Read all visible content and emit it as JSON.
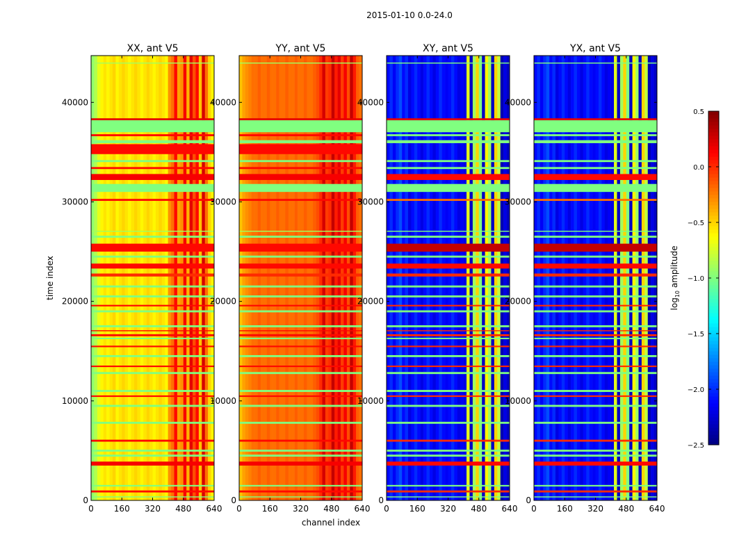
{
  "chart_data": {
    "type": "heatmap",
    "title": "2015-01-10 0.0-24.0",
    "xlabel": "channel index",
    "ylabel": "time index",
    "xlim": [
      0,
      640
    ],
    "ylim": [
      0,
      44700
    ],
    "xticks": [
      "0",
      "160",
      "320",
      "480",
      "640"
    ],
    "yticks": [
      "0",
      "10000",
      "20000",
      "30000",
      "40000"
    ],
    "xtick_values": [
      0,
      160,
      320,
      480,
      640
    ],
    "ytick_values": [
      0,
      10000,
      20000,
      30000,
      40000
    ],
    "colormap": "jet",
    "colorbar": {
      "label": "log10 amplitude",
      "label_main": "log",
      "label_sub": "10",
      "label_rest": " amplitude",
      "range": [
        -2.5,
        0.5
      ],
      "ticks": [
        "0.5",
        "0.0",
        "−0.5",
        "−1.0",
        "−1.5",
        "−2.0",
        "−2.5"
      ],
      "tick_values": [
        0.5,
        0.0,
        -0.5,
        -1.0,
        -1.5,
        -2.0,
        -2.5
      ]
    },
    "channel_bin_width": 16,
    "panels": [
      {
        "title": "XX, ant V5",
        "kind": "parallel",
        "channel_profile": [
          -0.95,
          -0.85,
          -0.7,
          -0.6,
          -0.55,
          -0.6,
          -0.55,
          -0.5,
          -0.6,
          -0.55,
          -0.5,
          -0.55,
          -0.6,
          -0.55,
          -0.5,
          -0.55,
          -0.6,
          -0.55,
          -0.5,
          -0.55,
          -0.6,
          -0.55,
          -0.5,
          -0.55,
          -0.6,
          -0.3,
          -0.2,
          0.1,
          -0.35,
          -0.3,
          0.15,
          -0.4,
          0.2,
          -0.1,
          0.1,
          -0.45,
          0.25,
          -0.2,
          -0.5,
          -0.6
        ]
      },
      {
        "title": "YY, ant V5",
        "kind": "parallel",
        "channel_profile": [
          -0.45,
          -0.35,
          -0.3,
          -0.25,
          -0.2,
          -0.2,
          -0.15,
          -0.2,
          -0.2,
          -0.15,
          -0.2,
          -0.2,
          -0.15,
          -0.2,
          -0.2,
          -0.15,
          -0.2,
          -0.2,
          -0.15,
          -0.2,
          -0.2,
          -0.15,
          -0.2,
          -0.2,
          -0.15,
          -0.1,
          0.0,
          0.25,
          -0.05,
          0.0,
          0.3,
          0.05,
          0.2,
          -0.05,
          0.15,
          -0.1,
          0.3,
          0.05,
          -0.15,
          -0.2
        ]
      },
      {
        "title": "XY, ant V5",
        "kind": "cross",
        "channel_profile": [
          -2.1,
          -2.0,
          -2.15,
          -2.0,
          -1.9,
          -2.1,
          -2.0,
          -2.2,
          -2.1,
          -2.0,
          -2.1,
          -2.2,
          -2.1,
          -2.0,
          -2.1,
          -2.2,
          -2.1,
          -2.0,
          -2.1,
          -2.15,
          -2.1,
          -2.0,
          -2.1,
          -2.2,
          -2.15,
          -2.2,
          -0.7,
          -2.3,
          -0.9,
          -0.5,
          -1.0,
          -2.3,
          -0.6,
          -0.9,
          -2.3,
          -0.5,
          -0.8,
          -2.35,
          -2.2,
          -2.3
        ]
      },
      {
        "title": "YX, ant V5",
        "kind": "cross",
        "channel_profile": [
          -2.1,
          -2.0,
          -2.15,
          -2.0,
          -1.9,
          -2.1,
          -2.0,
          -2.2,
          -2.1,
          -2.0,
          -2.1,
          -2.2,
          -2.1,
          -2.0,
          -2.1,
          -2.2,
          -2.1,
          -2.0,
          -2.1,
          -2.15,
          -2.1,
          -2.0,
          -2.1,
          -2.2,
          -2.15,
          -2.2,
          -0.7,
          -2.3,
          -0.9,
          -0.5,
          -1.0,
          -2.3,
          -0.6,
          -0.9,
          -2.3,
          -0.5,
          -0.8,
          -2.35,
          -2.2,
          -2.3
        ]
      }
    ],
    "time_bands": [
      {
        "t0": 43900,
        "t1": 44000,
        "parallel": -0.9,
        "cross": -1.0
      },
      {
        "t0": 38200,
        "t1": 38400,
        "parallel": 0.2,
        "cross": 0.2
      },
      {
        "t0": 37000,
        "t1": 38200,
        "parallel": -1.0,
        "cross": -1.0
      },
      {
        "t0": 36600,
        "t1": 36800,
        "parallel": 0.1,
        "cross": -1.0
      },
      {
        "t0": 35900,
        "t1": 36200,
        "parallel": -1.0,
        "cross": -1.0
      },
      {
        "t0": 34800,
        "t1": 35800,
        "parallel": 0.1,
        "cross": -2.1
      },
      {
        "t0": 34000,
        "t1": 34200,
        "parallel": -1.0,
        "cross": -1.0
      },
      {
        "t0": 33300,
        "t1": 33500,
        "parallel": 0.1,
        "cross": -1.0
      },
      {
        "t0": 32200,
        "t1": 32800,
        "parallel": 0.15,
        "cross": 0.1
      },
      {
        "t0": 31000,
        "t1": 31800,
        "parallel": -1.0,
        "cross": -1.0
      },
      {
        "t0": 30100,
        "t1": 30300,
        "parallel": 0.1,
        "cross": -0.2
      },
      {
        "t0": 27000,
        "t1": 27100,
        "parallel": -0.9,
        "cross": -1.0
      },
      {
        "t0": 26400,
        "t1": 26600,
        "parallel": -1.0,
        "cross": -1.0
      },
      {
        "t0": 25000,
        "t1": 25800,
        "parallel": 0.1,
        "cross": 0.3
      },
      {
        "t0": 24400,
        "t1": 24600,
        "parallel": -1.0,
        "cross": -1.0
      },
      {
        "t0": 23300,
        "t1": 23800,
        "parallel": 0.1,
        "cross": 0.1
      },
      {
        "t0": 22500,
        "t1": 22800,
        "parallel": 0.0,
        "cross": 0.0
      },
      {
        "t0": 21400,
        "t1": 21600,
        "parallel": -1.0,
        "cross": -1.0
      },
      {
        "t0": 20400,
        "t1": 20600,
        "parallel": -1.0,
        "cross": -1.0
      },
      {
        "t0": 19500,
        "t1": 19650,
        "parallel": 0.1,
        "cross": 0.0
      },
      {
        "t0": 18900,
        "t1": 19100,
        "parallel": -1.0,
        "cross": -1.0
      },
      {
        "t0": 17400,
        "t1": 17600,
        "parallel": -1.0,
        "cross": -1.0
      },
      {
        "t0": 17000,
        "t1": 17100,
        "parallel": 0.1,
        "cross": 0.0
      },
      {
        "t0": 16500,
        "t1": 16700,
        "parallel": 0.1,
        "cross": 0.0
      },
      {
        "t0": 16200,
        "t1": 16350,
        "parallel": -1.0,
        "cross": -1.0
      },
      {
        "t0": 15400,
        "t1": 15550,
        "parallel": 0.1,
        "cross": 0.0
      },
      {
        "t0": 14400,
        "t1": 14600,
        "parallel": -1.0,
        "cross": -1.0
      },
      {
        "t0": 13400,
        "t1": 13550,
        "parallel": 0.1,
        "cross": 0.0
      },
      {
        "t0": 12700,
        "t1": 12900,
        "parallel": -1.0,
        "cross": -1.0
      },
      {
        "t0": 10900,
        "t1": 11100,
        "parallel": -1.0,
        "cross": -1.0
      },
      {
        "t0": 10400,
        "t1": 10550,
        "parallel": 0.1,
        "cross": 0.0
      },
      {
        "t0": 9400,
        "t1": 9600,
        "parallel": -1.0,
        "cross": -1.0
      },
      {
        "t0": 7700,
        "t1": 7900,
        "parallel": -1.0,
        "cross": -1.0
      },
      {
        "t0": 5900,
        "t1": 6100,
        "parallel": 0.1,
        "cross": 0.0
      },
      {
        "t0": 4900,
        "t1": 5100,
        "parallel": -1.0,
        "cross": -1.0
      },
      {
        "t0": 4400,
        "t1": 4600,
        "parallel": -1.0,
        "cross": -1.0
      },
      {
        "t0": 3500,
        "t1": 3900,
        "parallel": 0.15,
        "cross": 0.1
      },
      {
        "t0": 1400,
        "t1": 1550,
        "parallel": -1.0,
        "cross": -1.0
      },
      {
        "t0": 800,
        "t1": 1000,
        "parallel": 0.1,
        "cross": 0.0
      },
      {
        "t0": 300,
        "t1": 400,
        "parallel": -1.0,
        "cross": -1.0
      }
    ]
  }
}
